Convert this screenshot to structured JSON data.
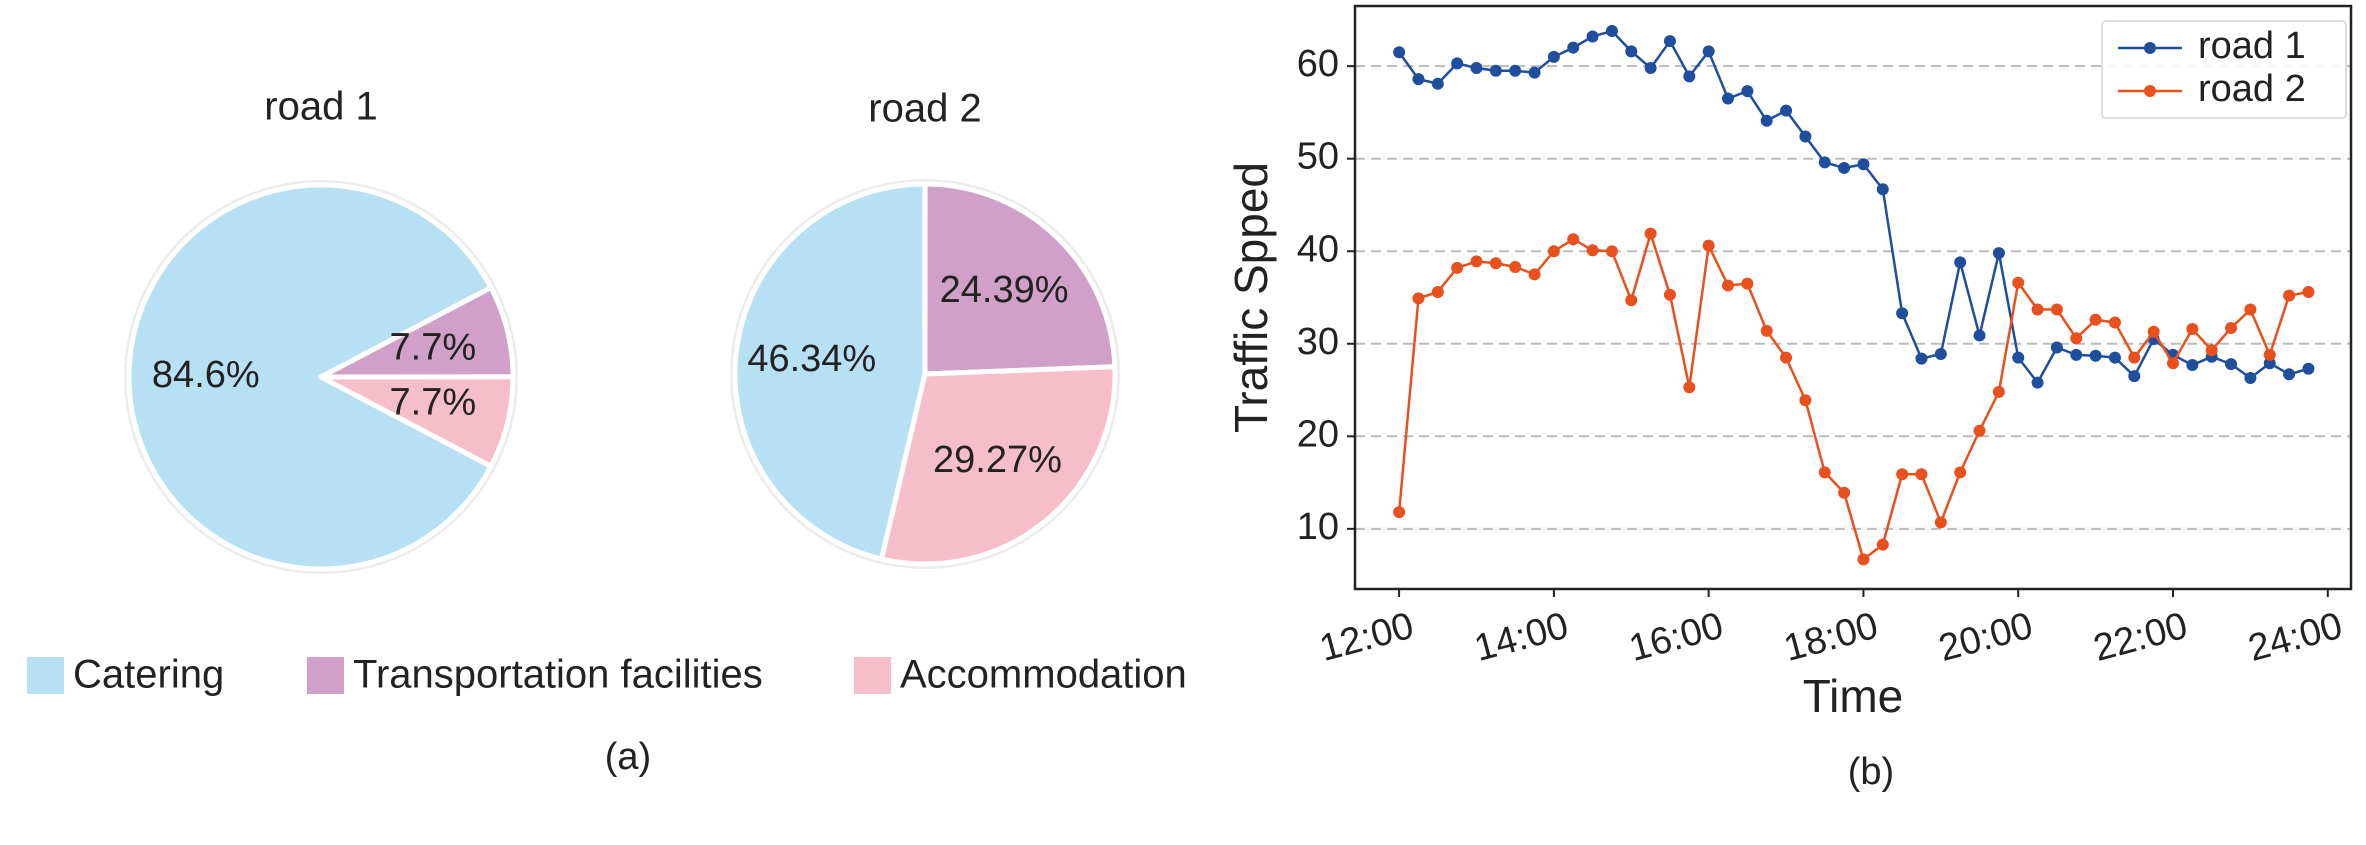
{
  "legend": {
    "items": [
      "Catering",
      "Transportation facilities",
      "Accommodation"
    ],
    "colors": [
      "#b8e0f5",
      "#d0a0c8",
      "#f6bdcb"
    ]
  },
  "captions": [
    "(a)",
    "(b)"
  ],
  "chart_data": [
    {
      "type": "pie",
      "title": "road 1",
      "values": [
        84.6,
        7.7,
        7.7
      ],
      "value_labels": [
        "84.6%",
        "7.7%",
        "7.7%"
      ],
      "startangle": -27.7,
      "counterclock": false
    },
    {
      "type": "pie",
      "title": "road 2",
      "values": [
        46.34,
        24.39,
        29.27
      ],
      "value_labels": [
        "46.34%",
        "24.39%",
        "29.27%"
      ],
      "startangle": -103.2,
      "counterclock": false
    },
    {
      "type": "line",
      "x_label": "Time",
      "y_label": "Traffic Spped",
      "x": [
        12,
        12.25,
        12.5,
        12.75,
        13,
        13.25,
        13.5,
        13.75,
        14,
        14.25,
        14.5,
        14.75,
        15,
        15.25,
        15.5,
        15.75,
        16,
        16.25,
        16.5,
        16.75,
        17,
        17.25,
        17.5,
        17.75,
        18,
        18.25,
        18.5,
        18.75,
        19,
        19.25,
        19.5,
        19.75,
        20,
        20.25,
        20.5,
        20.75,
        21,
        21.25,
        21.5,
        21.75,
        22,
        22.25,
        22.5,
        22.75,
        23,
        23.25,
        23.5,
        23.75
      ],
      "series": [
        {
          "name": "road 1",
          "color": "#1f4e9c",
          "values": [
            61.5,
            58.6,
            58.1,
            60.3,
            59.8,
            59.5,
            59.5,
            59.3,
            61,
            62,
            63.2,
            63.8,
            61.6,
            59.8,
            62.7,
            58.9,
            61.6,
            56.5,
            57.3,
            54.1,
            55.2,
            52.4,
            49.6,
            49,
            49.4,
            46.7,
            33.3,
            28.4,
            28.9,
            38.8,
            30.9,
            39.8,
            28.5,
            25.8,
            29.6,
            28.8,
            28.7,
            28.5,
            26.5,
            30.5,
            28.8,
            27.7,
            28.6,
            27.8,
            26.3,
            27.9,
            26.7,
            27.3
          ]
        },
        {
          "name": "road 2",
          "color": "#e8501e",
          "values": [
            11.8,
            34.9,
            35.6,
            38.2,
            38.9,
            38.7,
            38.3,
            37.5,
            40,
            41.3,
            40.1,
            40,
            34.7,
            41.9,
            35.3,
            25.3,
            40.6,
            36.3,
            36.5,
            31.4,
            28.5,
            23.9,
            16.1,
            13.9,
            6.7,
            8.3,
            15.9,
            15.9,
            10.7,
            16.1,
            20.6,
            24.8,
            36.6,
            33.7,
            33.7,
            30.6,
            32.6,
            32.3,
            28.5,
            31.3,
            27.9,
            31.6,
            29.3,
            31.7,
            33.7,
            28.8,
            35.2,
            35.6
          ]
        }
      ],
      "xlim": [
        11.43,
        24.3
      ],
      "ylim": [
        3.5,
        66.5
      ],
      "xticks": [
        {
          "value": 12,
          "label": "12:00"
        },
        {
          "value": 14,
          "label": "14:00"
        },
        {
          "value": 16,
          "label": "16:00"
        },
        {
          "value": 18,
          "label": "18:00"
        },
        {
          "value": 20,
          "label": "20:00"
        },
        {
          "value": 22,
          "label": "22:00"
        },
        {
          "value": 24,
          "label": "24:00"
        }
      ],
      "yticks": [
        10,
        20,
        30,
        40,
        50,
        60
      ],
      "grid": "y",
      "legend_position": "upper right"
    }
  ]
}
